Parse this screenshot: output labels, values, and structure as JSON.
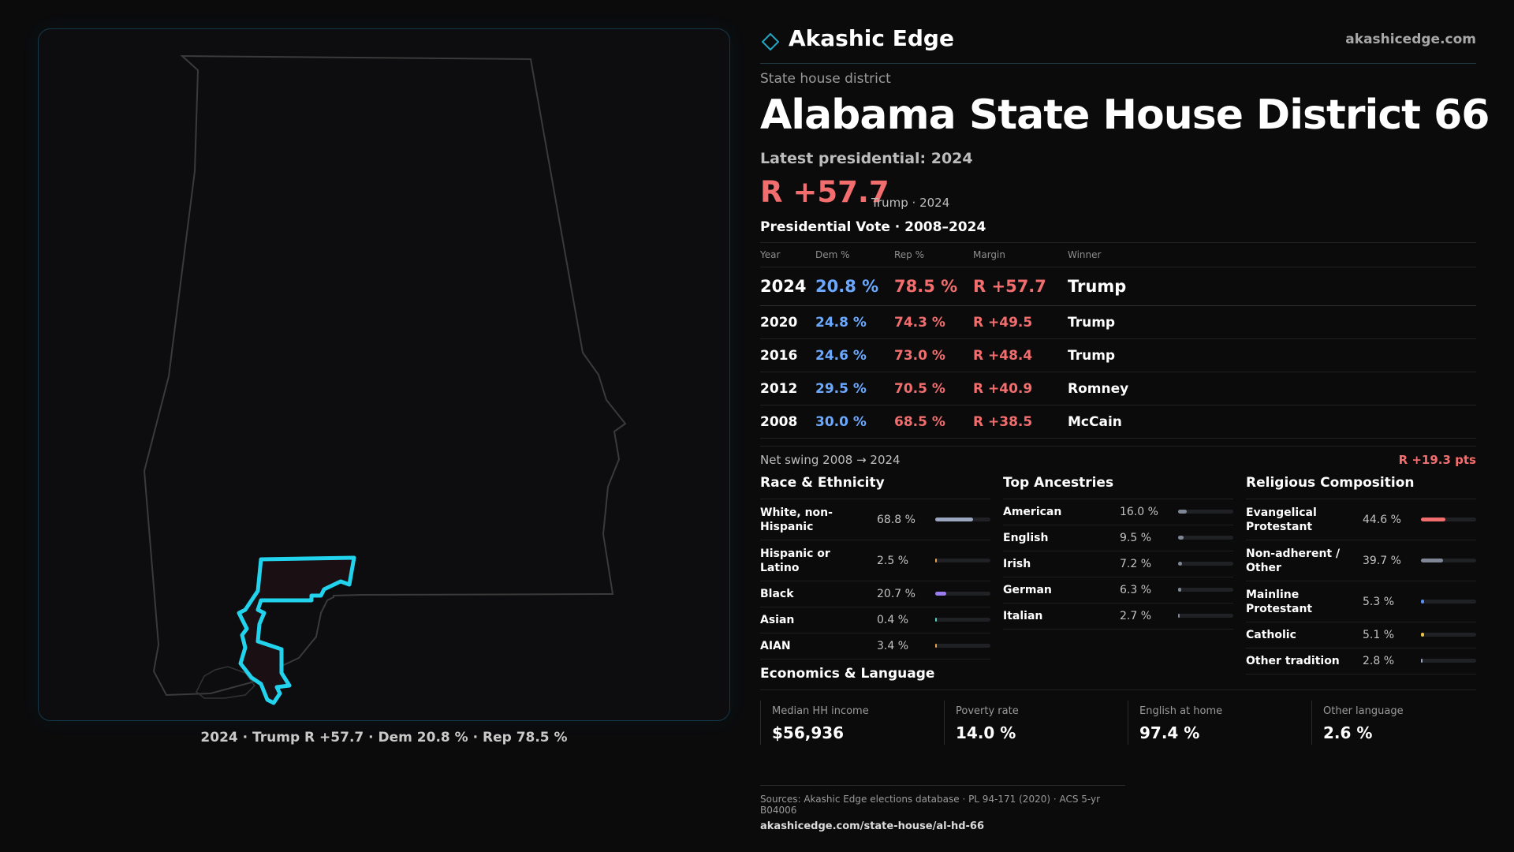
{
  "map": {
    "caption": "2024 · Trump R +57.7 · Dem 20.8 % · Rep 78.5 %",
    "state_outline_color": "#3a3a3a",
    "district_color": "#22d3ee"
  },
  "header": {
    "logo_icon": "diamond-icon",
    "brand": "Akashic Edge",
    "site": "akashicedge.com"
  },
  "kicker": "State house district",
  "title": "Alabama State House District 66",
  "latest_label": "Latest presidential: 2024",
  "margin": {
    "value": "R +57.7",
    "sub": "Trump · 2024"
  },
  "vote_table": {
    "title": "Presidential Vote · 2008–2024",
    "columns": [
      "Year",
      "Dem %",
      "Rep %",
      "Margin",
      "Winner"
    ],
    "rows": [
      {
        "year": "2024",
        "dem": "20.8 %",
        "rep": "78.5 %",
        "margin": "R +57.7",
        "winner": "Trump"
      },
      {
        "year": "2020",
        "dem": "24.8 %",
        "rep": "74.3 %",
        "margin": "R +49.5",
        "winner": "Trump"
      },
      {
        "year": "2016",
        "dem": "24.6 %",
        "rep": "73.0 %",
        "margin": "R +48.4",
        "winner": "Trump"
      },
      {
        "year": "2012",
        "dem": "29.5 %",
        "rep": "70.5 %",
        "margin": "R +40.9",
        "winner": "Romney"
      },
      {
        "year": "2008",
        "dem": "30.0 %",
        "rep": "68.5 %",
        "margin": "R +38.5",
        "winner": "McCain"
      }
    ]
  },
  "swing": {
    "label": "Net swing 2008 → 2024",
    "value": "R +19.3 pts"
  },
  "race": {
    "title": "Race & Ethnicity",
    "items": [
      {
        "label": "White, non-Hispanic",
        "value": "68.8 %",
        "pct": 68.8,
        "color": "#9aa6bd"
      },
      {
        "label": "Hispanic or Latino",
        "value": "2.5 %",
        "pct": 2.5,
        "color": "#e8a34a"
      },
      {
        "label": "Black",
        "value": "20.7 %",
        "pct": 20.7,
        "color": "#9b7cf0"
      },
      {
        "label": "Asian",
        "value": "0.4 %",
        "pct": 0.4,
        "color": "#4fd1c5"
      },
      {
        "label": "AIAN",
        "value": "3.4 %",
        "pct": 3.4,
        "color": "#e8a34a"
      }
    ]
  },
  "ancestry": {
    "title": "Top Ancestries",
    "items": [
      {
        "label": "American",
        "value": "16.0 %",
        "pct": 16.0,
        "color": "#7f8796"
      },
      {
        "label": "English",
        "value": "9.5 %",
        "pct": 9.5,
        "color": "#7f8796"
      },
      {
        "label": "Irish",
        "value": "7.2 %",
        "pct": 7.2,
        "color": "#7f8796"
      },
      {
        "label": "German",
        "value": "6.3 %",
        "pct": 6.3,
        "color": "#7f8796"
      },
      {
        "label": "Italian",
        "value": "2.7 %",
        "pct": 2.7,
        "color": "#7f8796"
      }
    ]
  },
  "religion": {
    "title": "Religious Composition",
    "items": [
      {
        "label": "Evangelical Protestant",
        "value": "44.6 %",
        "pct": 44.6,
        "color": "#f26d6d"
      },
      {
        "label": "Non-adherent / Other",
        "value": "39.7 %",
        "pct": 39.7,
        "color": "#7f8796"
      },
      {
        "label": "Mainline Protestant",
        "value": "5.3 %",
        "pct": 5.3,
        "color": "#5b8def"
      },
      {
        "label": "Catholic",
        "value": "5.1 %",
        "pct": 5.1,
        "color": "#e8c34a"
      },
      {
        "label": "Other tradition",
        "value": "2.8 %",
        "pct": 2.8,
        "color": "#9aa6bd"
      }
    ]
  },
  "economics": {
    "title": "Economics & Language",
    "items": [
      {
        "label": "Median HH income",
        "value": "$56,936"
      },
      {
        "label": "Poverty rate",
        "value": "14.0 %"
      },
      {
        "label": "English at home",
        "value": "97.4 %"
      },
      {
        "label": "Other language",
        "value": "2.6 %"
      }
    ]
  },
  "footer": {
    "sources": "Sources: Akashic Edge elections database · PL 94-171 (2020) · ACS 5-yr B04006",
    "url": "akashicedge.com/state-house/al-hd-66"
  }
}
